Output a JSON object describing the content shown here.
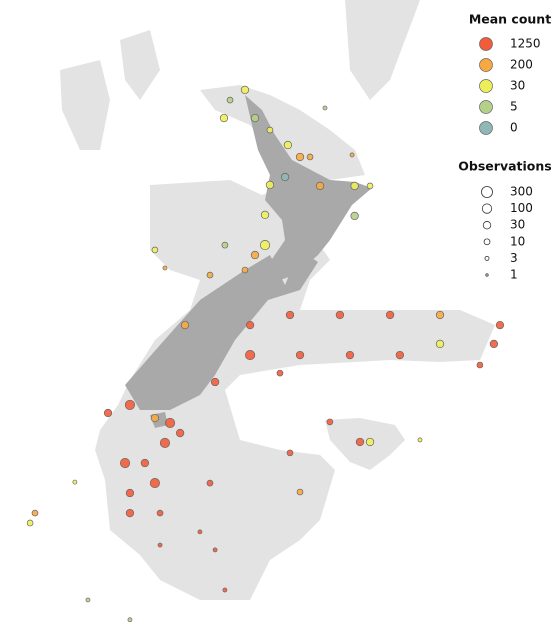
{
  "legend": {
    "color": {
      "title": "Mean count",
      "values": [
        1250,
        200,
        30,
        5,
        0
      ],
      "colors": [
        "#f25c3a",
        "#f7a840",
        "#eeee5a",
        "#b5d08a",
        "#8fb7b6"
      ]
    },
    "size": {
      "title": "Observations",
      "values": [
        300,
        100,
        30,
        10,
        3,
        1
      ]
    }
  },
  "points": [
    [
      173.5,
      -34.04,
      30,
      30
    ],
    [
      172.6,
      -35.15,
      30,
      30
    ],
    [
      173.93,
      -35.15,
      5,
      30
    ],
    [
      174.57,
      -35.62,
      30,
      10
    ],
    [
      175.34,
      -36.21,
      30,
      30
    ],
    [
      175.86,
      -36.68,
      200,
      30
    ],
    [
      176.29,
      -36.68,
      200,
      10
    ],
    [
      175.22,
      -37.47,
      0,
      30
    ],
    [
      174.57,
      -37.78,
      30,
      30
    ],
    [
      176.72,
      -37.82,
      200,
      30
    ],
    [
      178.2,
      -37.82,
      30,
      30
    ],
    [
      178.86,
      -37.82,
      30,
      10
    ],
    [
      178.2,
      -39.0,
      5,
      30
    ],
    [
      174.36,
      -38.96,
      30,
      30
    ],
    [
      174.36,
      -40.15,
      30,
      100
    ],
    [
      173.93,
      -40.54,
      200,
      30
    ],
    [
      173.5,
      -41.13,
      200,
      10
    ],
    [
      172.64,
      -40.15,
      5,
      10
    ],
    [
      172.0,
      -41.33,
      200,
      10
    ],
    [
      170.93,
      -43.3,
      200,
      30
    ],
    [
      173.72,
      -43.3,
      1250,
      30
    ],
    [
      175.43,
      -42.9,
      1250,
      30
    ],
    [
      177.57,
      -42.9,
      1250,
      30
    ],
    [
      179.72,
      -42.9,
      1250,
      30
    ],
    [
      181.86,
      -42.9,
      200,
      30
    ],
    [
      184.43,
      -43.3,
      1250,
      30
    ],
    [
      173.72,
      -44.48,
      1250,
      100
    ],
    [
      175.86,
      -44.48,
      1250,
      30
    ],
    [
      178.0,
      -44.48,
      1250,
      30
    ],
    [
      180.14,
      -44.48,
      1250,
      30
    ],
    [
      181.86,
      -44.04,
      30,
      30
    ],
    [
      184.17,
      -44.04,
      1250,
      30
    ],
    [
      183.57,
      -44.87,
      1250,
      10
    ],
    [
      175.0,
      -45.19,
      1250,
      10
    ],
    [
      172.22,
      -45.54,
      1250,
      30
    ],
    [
      168.57,
      -46.44,
      1250,
      100
    ],
    [
      167.63,
      -46.76,
      1250,
      30
    ],
    [
      169.64,
      -46.96,
      200,
      30
    ],
    [
      170.29,
      -47.15,
      1250,
      100
    ],
    [
      170.72,
      -47.55,
      1250,
      30
    ],
    [
      170.07,
      -47.94,
      1250,
      100
    ],
    [
      168.36,
      -48.73,
      1250,
      100
    ],
    [
      169.21,
      -48.73,
      1250,
      30
    ],
    [
      169.64,
      -49.52,
      1250,
      100
    ],
    [
      168.57,
      -49.91,
      1250,
      30
    ],
    [
      168.57,
      -50.7,
      1250,
      30
    ],
    [
      169.86,
      -50.7,
      1250,
      10
    ],
    [
      172.0,
      -49.52,
      1250,
      10
    ],
    [
      175.43,
      -48.33,
      1250,
      10
    ],
    [
      175.86,
      -49.87,
      200,
      10
    ],
    [
      177.14,
      -47.11,
      1250,
      10
    ],
    [
      178.43,
      -47.9,
      1250,
      30
    ],
    [
      178.86,
      -47.9,
      30,
      30
    ],
    [
      181.0,
      -47.82,
      30,
      3
    ],
    [
      164.5,
      -50.7,
      200,
      10
    ],
    [
      164.29,
      -51.09,
      30,
      10
    ],
    [
      166.21,
      -49.48,
      30,
      3
    ],
    [
      171.57,
      -51.44,
      1250,
      3
    ],
    [
      169.86,
      -51.96,
      1250,
      3
    ],
    [
      172.22,
      -52.15,
      1250,
      3
    ],
    [
      172.64,
      -53.73,
      1250,
      3
    ],
    [
      166.77,
      -54.12,
      5,
      3
    ],
    [
      168.57,
      -54.9,
      5,
      3
    ],
    [
      169.64,
      -40.34,
      30,
      10
    ],
    [
      170.07,
      -41.05,
      200,
      3
    ],
    [
      172.86,
      -34.44,
      5,
      10
    ],
    [
      176.93,
      -34.75,
      5,
      3
    ],
    [
      178.09,
      -36.6,
      200,
      3
    ]
  ]
}
